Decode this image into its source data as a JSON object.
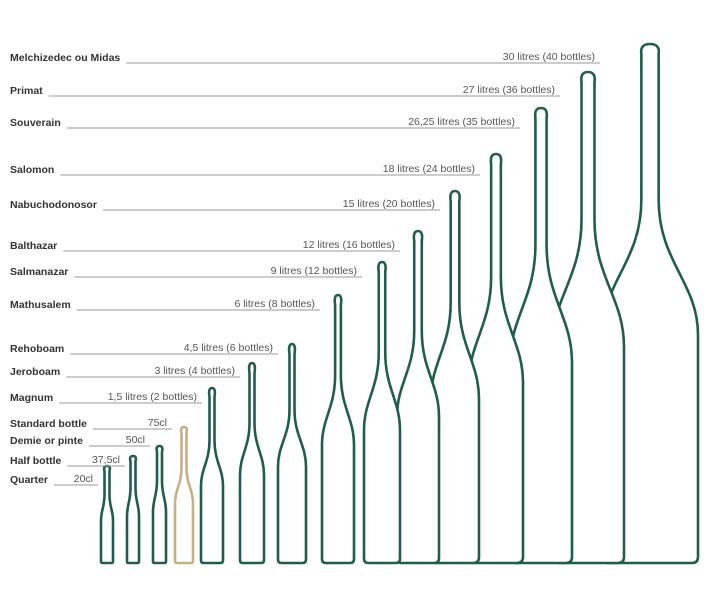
{
  "colors": {
    "bottle": "#1f5e4c",
    "highlight": "#c5b185",
    "label": "#333333",
    "volume": "#555555",
    "leader": "#9a9a9a"
  },
  "bottles": [
    {
      "name": "Melchizedec ou Midas",
      "volume": "30 litres (40 bottles)",
      "litres": 30,
      "bottles": 40
    },
    {
      "name": "Primat",
      "volume": "27 litres (36 bottles)",
      "litres": 27,
      "bottles": 36
    },
    {
      "name": "Souverain",
      "volume": "26,25 litres (35 bottles)",
      "litres": 26.25,
      "bottles": 35
    },
    {
      "name": "Salomon",
      "volume": "18 litres (24 bottles)",
      "litres": 18,
      "bottles": 24
    },
    {
      "name": "Nabuchodonosor",
      "volume": "15 litres (20 bottles)",
      "litres": 15,
      "bottles": 20
    },
    {
      "name": "Balthazar",
      "volume": "12 litres (16 bottles)",
      "litres": 12,
      "bottles": 16
    },
    {
      "name": "Salmanazar",
      "volume": "9 litres (12 bottles)",
      "litres": 9,
      "bottles": 12
    },
    {
      "name": "Mathusalem",
      "volume": "6 litres (8 bottles)",
      "litres": 6,
      "bottles": 8
    },
    {
      "name": "Rehoboam",
      "volume": "4,5 litres (6 bottles)",
      "litres": 4.5,
      "bottles": 6
    },
    {
      "name": "Jeroboam",
      "volume": "3 litres (4 bottles)",
      "litres": 3,
      "bottles": 4
    },
    {
      "name": "Magnum",
      "volume": "1,5 litres (2 bottles)",
      "litres": 1.5,
      "bottles": 2
    },
    {
      "name": "Standard bottle",
      "volume": "75cl",
      "litres": 0.75,
      "highlight": true
    },
    {
      "name": "Demie or pinte",
      "volume": "50cl",
      "litres": 0.5
    },
    {
      "name": "Half bottle",
      "volume": "37,5cl",
      "litres": 0.375
    },
    {
      "name": "Quarter",
      "volume": "20cl",
      "litres": 0.2
    }
  ]
}
